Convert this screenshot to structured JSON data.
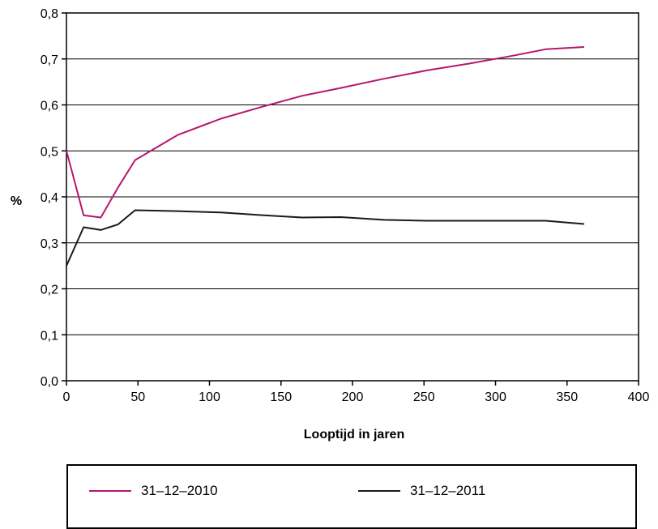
{
  "chart_data": {
    "type": "line",
    "title": "",
    "xlabel": "Looptijd in jaren",
    "ylabel": "%",
    "xlim": [
      0,
      400
    ],
    "ylim": [
      0,
      0.8
    ],
    "x_ticks": [
      "0",
      "50",
      "100",
      "150",
      "200",
      "250",
      "300",
      "350",
      "400"
    ],
    "y_ticks": [
      "0,0",
      "0,1",
      "0,2",
      "0,3",
      "0,4",
      "0,5",
      "0,6",
      "0,7",
      "0,8"
    ],
    "grid": "horizontal",
    "legend_position": "bottom",
    "series": [
      {
        "name": "31–12–2010",
        "color": "#b5176e",
        "x": [
          0,
          12,
          24,
          36,
          48,
          78,
          108,
          138,
          165,
          192,
          222,
          252,
          282,
          312,
          335,
          362
        ],
        "y": [
          0.5,
          0.36,
          0.355,
          0.42,
          0.48,
          0.535,
          0.57,
          0.597,
          0.62,
          0.637,
          0.657,
          0.675,
          0.69,
          0.707,
          0.721,
          0.726
        ]
      },
      {
        "name": "31–12–2011",
        "color": "#1a1a1a",
        "x": [
          0,
          12,
          24,
          36,
          48,
          78,
          108,
          138,
          165,
          192,
          222,
          252,
          282,
          312,
          335,
          362
        ],
        "y": [
          0.25,
          0.334,
          0.328,
          0.34,
          0.371,
          0.369,
          0.366,
          0.36,
          0.355,
          0.356,
          0.35,
          0.348,
          0.348,
          0.348,
          0.348,
          0.341
        ]
      }
    ]
  }
}
